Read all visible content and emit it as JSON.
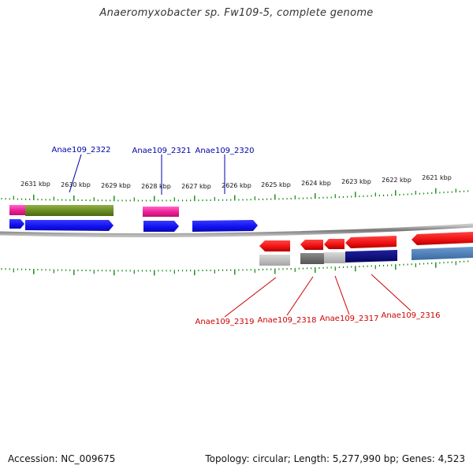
{
  "title": "Anaeromyxobacter sp. Fw109-5, complete genome",
  "footer": {
    "accession": "Accession: NC_009675",
    "summary": "Topology: circular; Length: 5,277,990 bp; Genes: 4,523"
  },
  "scale_labels": [
    "2631 kbp",
    "2630 kbp",
    "2629 kbp",
    "2628 kbp",
    "2627 kbp",
    "2626 kbp",
    "2625 kbp",
    "2624 kbp",
    "2623 kbp",
    "2622 kbp",
    "2621 kbp"
  ],
  "gene_labels_top": [
    "Anae109_2322",
    "Anae109_2321",
    "Anae109_2320"
  ],
  "gene_labels_bottom": [
    "Anae109_2319",
    "Anae109_2318",
    "Anae109_2317",
    "Anae109_2316"
  ],
  "colors": {
    "forward_gene": "#1a1aff",
    "reverse_gene": "#ee1111",
    "magenta": "#ee2299",
    "olive": "#6b8e23",
    "navy": "#0a0a80",
    "steel": "#4a7ab0",
    "tick": "#118811",
    "axis": "#888888",
    "top_label": "#0000aa",
    "bottom_label": "#cc0000"
  }
}
